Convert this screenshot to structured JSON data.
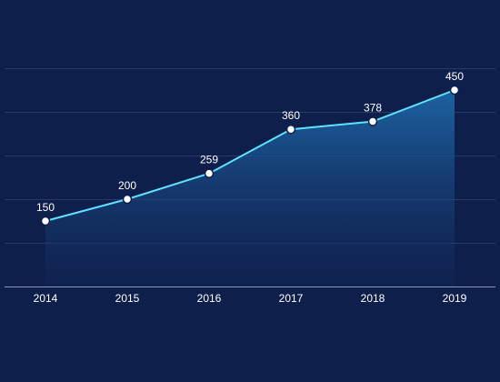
{
  "chart_data": {
    "type": "area",
    "title": "",
    "xlabel": "",
    "ylabel": "",
    "categories": [
      "2014",
      "2015",
      "2016",
      "2017",
      "2018",
      "2019"
    ],
    "values": [
      150,
      200,
      259,
      360,
      378,
      450
    ],
    "data_labels": [
      "150",
      "200",
      "259",
      "360",
      "378",
      "450"
    ],
    "ylim": [
      0,
      500
    ],
    "grid": true,
    "legend": "none",
    "colors": {
      "background": "#0f1f4b",
      "line": "#5ee2ff",
      "area_top": "#1e66a8",
      "area_bottom": "#12285a",
      "grid": "#2a3a66",
      "point": "#ffffff",
      "text": "#ffffff"
    }
  }
}
